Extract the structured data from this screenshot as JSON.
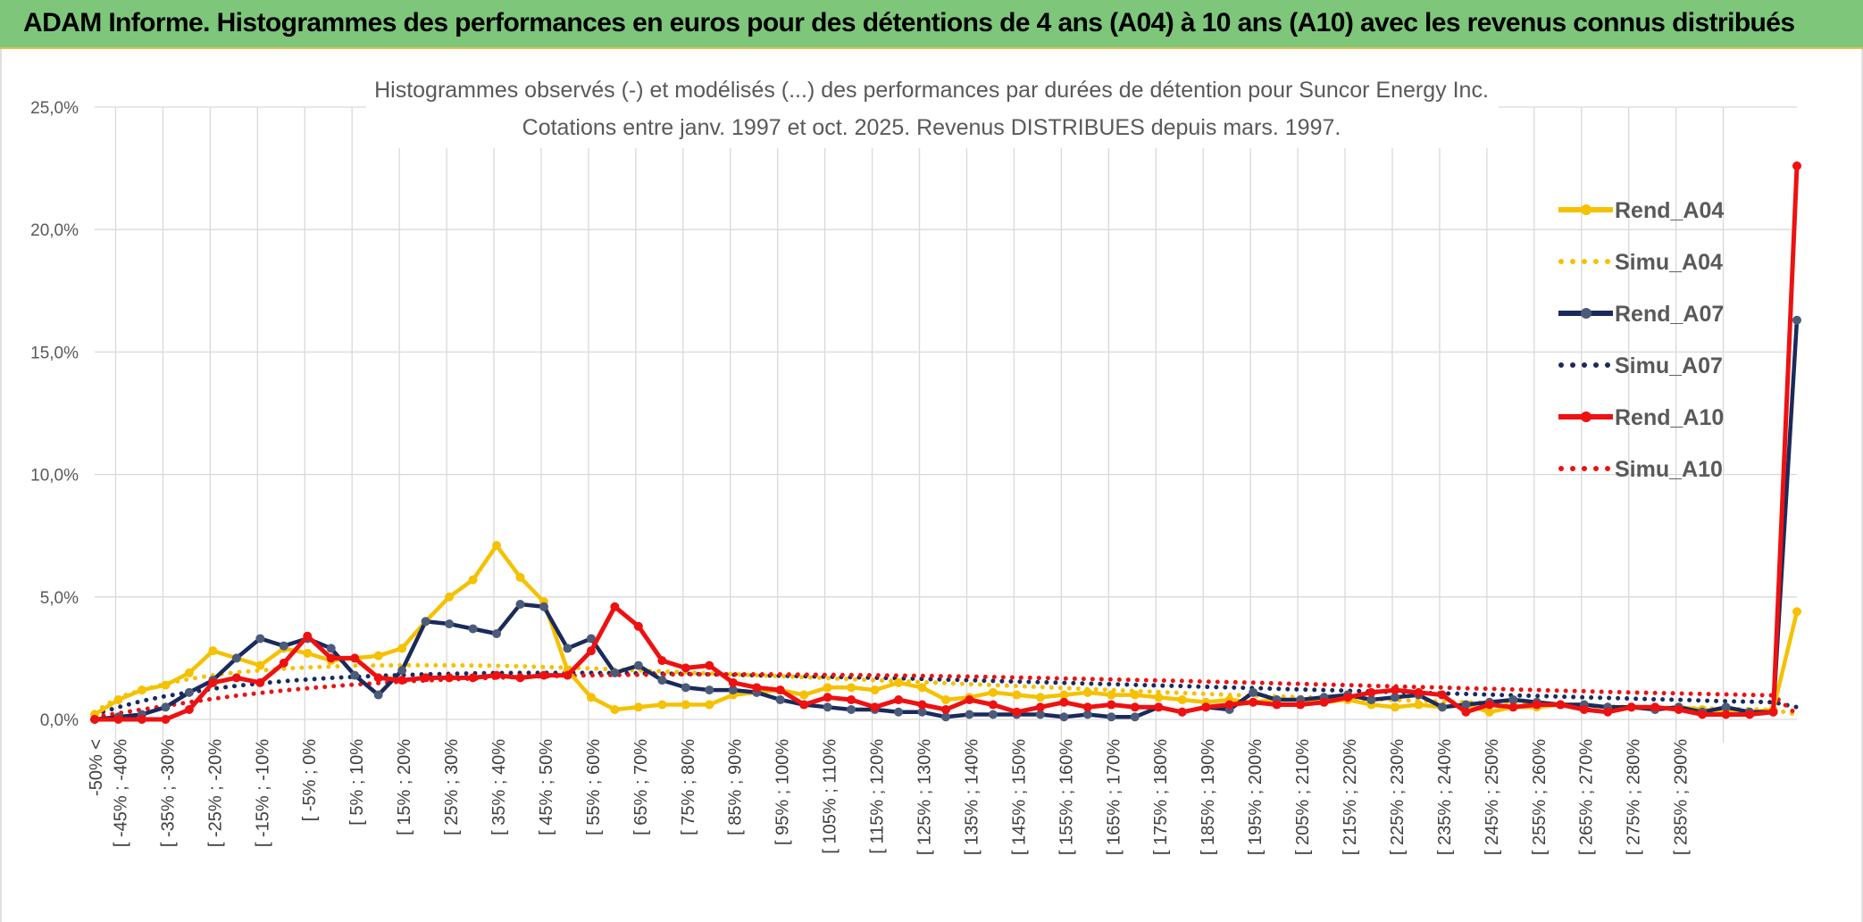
{
  "header": {
    "title": "ADAM Informe. Histogrammes des performances en euros pour des détentions de 4 ans (A04) à 10 ans (A10) avec les revenus connus distribués"
  },
  "colors": {
    "header_bg": "#7dc67a",
    "a04": "#f5c100",
    "a07": "#1b2a5c",
    "a07_marker": "#4b5b7a",
    "a10": "#ee1111",
    "grid": "#d9d9d9",
    "axis_text": "#595959"
  },
  "chart_data": {
    "type": "line",
    "title": "Histogrammes observés (-) et modélisés (...) des performances par durées de détention pour Suncor Energy Inc.",
    "subtitle": "Cotations entre janv. 1997 et oct. 2025. Revenus DISTRIBUES depuis mars. 1997.",
    "xlabel": "",
    "ylabel": "",
    "ylim": [
      0,
      25
    ],
    "yticks": [
      "0,0%",
      "5,0%",
      "10,0%",
      "15,0%",
      "20,0%",
      "25,0%"
    ],
    "grid": true,
    "legend_position": "right",
    "xticks": [
      "-50% <",
      "[ -45% ; -40%",
      "[ -35% ; -30%",
      "[ -25% ; -20%",
      "[ -15% ; -10%",
      "[ -5% ; 0%",
      "[ 5% ; 10%",
      "[ 15% ; 20%",
      "[ 25% ; 30%",
      "[ 35% ; 40%",
      "[ 45% ; 50%",
      "[ 55% ; 60%",
      "[ 65% ; 70%",
      "[ 75% ; 80%",
      "[ 85% ; 90%",
      "[ 95% ; 100%",
      "[ 105% ; 110%",
      "[ 115% ; 120%",
      "[ 125% ; 130%",
      "[ 135% ; 140%",
      "[ 145% ; 150%",
      "[ 155% ; 160%",
      "[ 165% ; 170%",
      "[ 175% ; 180%",
      "[ 185% ; 190%",
      "[ 195% ; 200%",
      "[ 205% ; 210%",
      "[ 215% ; 220%",
      "[ 225% ; 230%",
      "[ 235% ; 240%",
      "[ 245% ; 250%",
      "[ 255% ; 260%",
      "[ 265% ; 270%",
      "[ 275% ; 280%",
      "[ 285% ; 290%"
    ],
    "series": [
      {
        "name": "Rend_A04",
        "style": "solid",
        "color": "#f5c100",
        "marker": "#f5c100",
        "values": [
          0.2,
          0.8,
          1.2,
          1.4,
          1.9,
          2.8,
          2.5,
          2.2,
          2.9,
          2.7,
          2.4,
          2.5,
          2.6,
          2.9,
          4.0,
          5.0,
          5.7,
          7.1,
          5.8,
          4.8,
          2.0,
          0.9,
          0.4,
          0.5,
          0.6,
          0.6,
          0.6,
          1.0,
          1.1,
          1.2,
          1.0,
          1.3,
          1.3,
          1.2,
          1.5,
          1.3,
          0.8,
          0.9,
          1.1,
          1.0,
          0.9,
          1.0,
          1.1,
          1.0,
          1.0,
          0.9,
          0.8,
          0.7,
          0.8,
          0.7,
          0.8,
          0.8,
          0.7,
          0.8,
          0.6,
          0.5,
          0.6,
          0.5,
          0.6,
          0.3,
          0.5,
          0.5,
          0.6,
          0.6,
          0.5,
          0.5,
          0.4,
          0.5,
          0.4,
          0.3,
          0.3,
          0.4,
          4.4
        ]
      },
      {
        "name": "Simu_A04",
        "style": "dotted",
        "color": "#f5c100",
        "marker": null,
        "values": [
          0.3,
          0.9,
          1.2,
          1.45,
          1.65,
          1.8,
          1.92,
          2.0,
          2.07,
          2.12,
          2.16,
          2.19,
          2.2,
          2.21,
          2.21,
          2.21,
          2.2,
          2.19,
          2.17,
          2.14,
          2.11,
          2.08,
          2.04,
          2.0,
          1.96,
          1.92,
          1.88,
          1.84,
          1.8,
          1.76,
          1.72,
          1.68,
          1.64,
          1.6,
          1.56,
          1.52,
          1.48,
          1.44,
          1.4,
          1.36,
          1.32,
          1.28,
          1.24,
          1.2,
          1.16,
          1.12,
          1.08,
          1.04,
          1.0,
          0.97,
          0.94,
          0.91,
          0.88,
          0.85,
          0.82,
          0.79,
          0.76,
          0.73,
          0.7,
          0.67,
          0.64,
          0.61,
          0.58,
          0.55,
          0.53,
          0.51,
          0.49,
          0.47,
          0.45,
          0.43,
          0.41,
          0.39,
          0.2
        ]
      },
      {
        "name": "Rend_A07",
        "style": "solid",
        "color": "#1b2a5c",
        "marker": "#4b5b7a",
        "values": [
          0.0,
          0.1,
          0.2,
          0.5,
          1.1,
          1.6,
          2.5,
          3.3,
          3.0,
          3.3,
          2.9,
          1.8,
          1.0,
          2.0,
          4.0,
          3.9,
          3.7,
          3.5,
          4.7,
          4.6,
          2.9,
          3.3,
          1.9,
          2.2,
          1.6,
          1.3,
          1.2,
          1.2,
          1.1,
          0.8,
          0.6,
          0.5,
          0.4,
          0.4,
          0.3,
          0.3,
          0.1,
          0.2,
          0.2,
          0.2,
          0.2,
          0.1,
          0.2,
          0.1,
          0.1,
          0.5,
          0.3,
          0.5,
          0.4,
          1.1,
          0.8,
          0.8,
          0.9,
          1.0,
          0.8,
          0.9,
          1.0,
          0.5,
          0.6,
          0.7,
          0.8,
          0.7,
          0.6,
          0.6,
          0.5,
          0.5,
          0.4,
          0.5,
          0.3,
          0.5,
          0.3,
          0.3,
          16.3
        ]
      },
      {
        "name": "Simu_A07",
        "style": "dotted",
        "color": "#1b2a5c",
        "marker": null,
        "values": [
          0.2,
          0.5,
          0.75,
          0.95,
          1.1,
          1.25,
          1.37,
          1.47,
          1.56,
          1.63,
          1.69,
          1.74,
          1.78,
          1.81,
          1.84,
          1.86,
          1.88,
          1.89,
          1.9,
          1.9,
          1.9,
          1.9,
          1.89,
          1.88,
          1.87,
          1.86,
          1.84,
          1.82,
          1.8,
          1.78,
          1.76,
          1.74,
          1.72,
          1.7,
          1.68,
          1.65,
          1.62,
          1.6,
          1.57,
          1.54,
          1.52,
          1.49,
          1.46,
          1.44,
          1.41,
          1.38,
          1.36,
          1.33,
          1.3,
          1.28,
          1.25,
          1.22,
          1.2,
          1.17,
          1.14,
          1.12,
          1.09,
          1.06,
          1.04,
          1.01,
          0.98,
          0.96,
          0.93,
          0.9,
          0.88,
          0.85,
          0.82,
          0.8,
          0.77,
          0.74,
          0.72,
          0.7,
          0.5
        ]
      },
      {
        "name": "Rend_A10",
        "style": "solid",
        "color": "#ee1111",
        "marker": "#ee1111",
        "values": [
          0.0,
          0.0,
          0.0,
          0.0,
          0.4,
          1.5,
          1.7,
          1.5,
          2.3,
          3.4,
          2.5,
          2.5,
          1.7,
          1.6,
          1.7,
          1.7,
          1.7,
          1.8,
          1.7,
          1.8,
          1.8,
          2.8,
          4.6,
          3.8,
          2.4,
          2.1,
          2.2,
          1.5,
          1.3,
          1.2,
          0.6,
          0.9,
          0.8,
          0.5,
          0.8,
          0.6,
          0.4,
          0.8,
          0.6,
          0.3,
          0.5,
          0.7,
          0.5,
          0.6,
          0.5,
          0.5,
          0.3,
          0.5,
          0.6,
          0.7,
          0.6,
          0.6,
          0.7,
          0.9,
          1.1,
          1.2,
          1.1,
          1.0,
          0.3,
          0.6,
          0.5,
          0.6,
          0.6,
          0.4,
          0.3,
          0.5,
          0.5,
          0.4,
          0.2,
          0.2,
          0.2,
          0.3,
          22.6
        ]
      },
      {
        "name": "Simu_A10",
        "style": "dotted",
        "color": "#ee1111",
        "marker": null,
        "values": [
          0.1,
          0.25,
          0.4,
          0.55,
          0.7,
          0.84,
          0.97,
          1.08,
          1.18,
          1.27,
          1.35,
          1.42,
          1.48,
          1.54,
          1.59,
          1.63,
          1.67,
          1.7,
          1.73,
          1.76,
          1.78,
          1.8,
          1.81,
          1.82,
          1.83,
          1.84,
          1.84,
          1.84,
          1.84,
          1.84,
          1.83,
          1.82,
          1.81,
          1.8,
          1.79,
          1.78,
          1.76,
          1.75,
          1.73,
          1.71,
          1.69,
          1.67,
          1.65,
          1.63,
          1.61,
          1.59,
          1.57,
          1.54,
          1.52,
          1.5,
          1.47,
          1.45,
          1.42,
          1.4,
          1.37,
          1.35,
          1.32,
          1.3,
          1.27,
          1.25,
          1.22,
          1.2,
          1.17,
          1.15,
          1.12,
          1.1,
          1.08,
          1.06,
          1.04,
          1.02,
          1.0,
          0.98,
          0.2
        ]
      }
    ]
  }
}
